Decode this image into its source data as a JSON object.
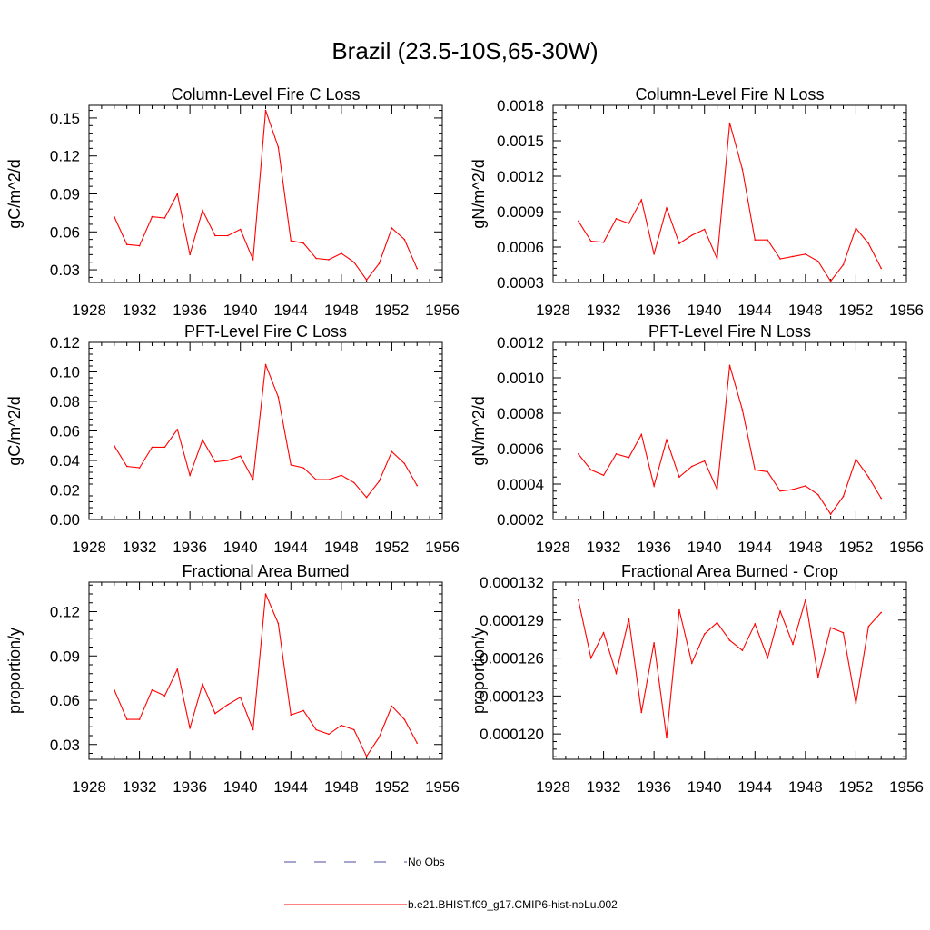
{
  "figure": {
    "title": "Brazil (23.5-10S,65-30W)",
    "colors": {
      "model": "#ff0000",
      "obs": "#4b4b9b",
      "axis": "#000000"
    },
    "legend": [
      {
        "label": "No Obs",
        "style": "dashed",
        "color": "#4b4b9b"
      },
      {
        "label": "b.e21.BHIST.f09_g17.CMIP6-hist-noLu.002",
        "style": "solid",
        "color": "#ff0000"
      }
    ]
  },
  "chart_data": [
    {
      "type": "line",
      "title": "Column-Level Fire C Loss",
      "ylabel": "gC/m^2/d",
      "xlim": [
        1928,
        1956
      ],
      "ylim": [
        0.02,
        0.16
      ],
      "x_ticks": [
        "1928",
        "1932",
        "1936",
        "1940",
        "1944",
        "1948",
        "1952",
        "1956"
      ],
      "y_ticks": [
        "0.03",
        "0.06",
        "0.09",
        "0.12",
        "0.15"
      ],
      "series": [
        {
          "x": [
            1930,
            1931,
            1932,
            1933,
            1934,
            1935,
            1936,
            1937,
            1938,
            1939,
            1940,
            1941,
            1942,
            1943,
            1944,
            1945,
            1946,
            1947,
            1948,
            1949,
            1950,
            1951,
            1952,
            1953,
            1954
          ],
          "values": [
            0.072,
            0.05,
            0.049,
            0.072,
            0.071,
            0.09,
            0.042,
            0.077,
            0.057,
            0.057,
            0.062,
            0.038,
            0.156,
            0.127,
            0.053,
            0.051,
            0.039,
            0.038,
            0.043,
            0.036,
            0.022,
            0.035,
            0.063,
            0.054,
            0.031
          ]
        }
      ]
    },
    {
      "type": "line",
      "title": "Column-Level Fire N Loss",
      "ylabel": "gN/m^2/d",
      "xlim": [
        1928,
        1956
      ],
      "ylim": [
        0.0003,
        0.0018
      ],
      "x_ticks": [
        "1928",
        "1932",
        "1936",
        "1940",
        "1944",
        "1948",
        "1952",
        "1956"
      ],
      "y_ticks": [
        "0.0003",
        "0.0006",
        "0.0009",
        "0.0012",
        "0.0015",
        "0.0018"
      ],
      "series": [
        {
          "x": [
            1930,
            1931,
            1932,
            1933,
            1934,
            1935,
            1936,
            1937,
            1938,
            1939,
            1940,
            1941,
            1942,
            1943,
            1944,
            1945,
            1946,
            1947,
            1948,
            1949,
            1950,
            1951,
            1952,
            1953,
            1954
          ],
          "values": [
            0.00082,
            0.00065,
            0.00064,
            0.00084,
            0.0008,
            0.001,
            0.00054,
            0.00093,
            0.00063,
            0.0007,
            0.00075,
            0.0005,
            0.00165,
            0.00126,
            0.00066,
            0.00066,
            0.0005,
            0.00052,
            0.00054,
            0.00048,
            0.00031,
            0.00045,
            0.00076,
            0.00063,
            0.00042
          ]
        }
      ]
    },
    {
      "type": "line",
      "title": "PFT-Level Fire C Loss",
      "ylabel": "gC/m^2/d",
      "xlim": [
        1928,
        1956
      ],
      "ylim": [
        0.0,
        0.12
      ],
      "x_ticks": [
        "1928",
        "1932",
        "1936",
        "1940",
        "1944",
        "1948",
        "1952",
        "1956"
      ],
      "y_ticks": [
        "0.00",
        "0.02",
        "0.04",
        "0.06",
        "0.08",
        "0.10",
        "0.12"
      ],
      "series": [
        {
          "x": [
            1930,
            1931,
            1932,
            1933,
            1934,
            1935,
            1936,
            1937,
            1938,
            1939,
            1940,
            1941,
            1942,
            1943,
            1944,
            1945,
            1946,
            1947,
            1948,
            1949,
            1950,
            1951,
            1952,
            1953,
            1954
          ],
          "values": [
            0.05,
            0.036,
            0.035,
            0.049,
            0.049,
            0.061,
            0.03,
            0.054,
            0.039,
            0.04,
            0.043,
            0.027,
            0.105,
            0.083,
            0.037,
            0.035,
            0.027,
            0.027,
            0.03,
            0.025,
            0.015,
            0.026,
            0.046,
            0.038,
            0.023
          ]
        }
      ]
    },
    {
      "type": "line",
      "title": "PFT-Level Fire N Loss",
      "ylabel": "gN/m^2/d",
      "xlim": [
        1928,
        1956
      ],
      "ylim": [
        0.0002,
        0.0012
      ],
      "x_ticks": [
        "1928",
        "1932",
        "1936",
        "1940",
        "1944",
        "1948",
        "1952",
        "1956"
      ],
      "y_ticks": [
        "0.0002",
        "0.0004",
        "0.0006",
        "0.0008",
        "0.0010",
        "0.0012"
      ],
      "series": [
        {
          "x": [
            1930,
            1931,
            1932,
            1933,
            1934,
            1935,
            1936,
            1937,
            1938,
            1939,
            1940,
            1941,
            1942,
            1943,
            1944,
            1945,
            1946,
            1947,
            1948,
            1949,
            1950,
            1951,
            1952,
            1953,
            1954
          ],
          "values": [
            0.00057,
            0.00048,
            0.00045,
            0.00057,
            0.00055,
            0.00068,
            0.00039,
            0.00065,
            0.00044,
            0.0005,
            0.00053,
            0.00037,
            0.00107,
            0.00082,
            0.00048,
            0.00047,
            0.00036,
            0.00037,
            0.00039,
            0.00034,
            0.00023,
            0.00033,
            0.00054,
            0.00044,
            0.00032
          ]
        }
      ]
    },
    {
      "type": "line",
      "title": "Fractional Area Burned",
      "ylabel": "proportion/y",
      "xlim": [
        1928,
        1956
      ],
      "ylim": [
        0.02,
        0.14
      ],
      "x_ticks": [
        "1928",
        "1932",
        "1936",
        "1940",
        "1944",
        "1948",
        "1952",
        "1956"
      ],
      "y_ticks": [
        "0.03",
        "0.06",
        "0.09",
        "0.12"
      ],
      "series": [
        {
          "x": [
            1930,
            1931,
            1932,
            1933,
            1934,
            1935,
            1936,
            1937,
            1938,
            1939,
            1940,
            1941,
            1942,
            1943,
            1944,
            1945,
            1946,
            1947,
            1948,
            1949,
            1950,
            1951,
            1952,
            1953,
            1954
          ],
          "values": [
            0.067,
            0.047,
            0.047,
            0.067,
            0.063,
            0.081,
            0.041,
            0.071,
            0.051,
            0.057,
            0.062,
            0.04,
            0.132,
            0.112,
            0.05,
            0.053,
            0.04,
            0.037,
            0.043,
            0.04,
            0.022,
            0.035,
            0.056,
            0.047,
            0.031
          ]
        }
      ]
    },
    {
      "type": "line",
      "title": "Fractional Area Burned - Crop",
      "ylabel": "proportion/y",
      "xlim": [
        1928,
        1956
      ],
      "ylim": [
        0.000118,
        0.000132
      ],
      "x_ticks": [
        "1928",
        "1932",
        "1936",
        "1940",
        "1944",
        "1948",
        "1952",
        "1956"
      ],
      "y_ticks": [
        "0.000120",
        "0.000123",
        "0.000126",
        "0.000129",
        "0.000132"
      ],
      "series": [
        {
          "x": [
            1930,
            1931,
            1932,
            1933,
            1934,
            1935,
            1936,
            1937,
            1938,
            1939,
            1940,
            1941,
            1942,
            1943,
            1944,
            1945,
            1946,
            1947,
            1948,
            1949,
            1950,
            1951,
            1952,
            1953,
            1954
          ],
          "values": [
            0.0001306,
            0.000126,
            0.000128,
            0.0001248,
            0.0001291,
            0.0001217,
            0.0001272,
            0.0001197,
            0.0001298,
            0.0001256,
            0.0001279,
            0.0001288,
            0.0001274,
            0.0001266,
            0.0001287,
            0.000126,
            0.0001297,
            0.0001271,
            0.0001306,
            0.0001245,
            0.0001284,
            0.000128,
            0.0001224,
            0.0001285,
            0.0001296
          ]
        }
      ]
    }
  ]
}
